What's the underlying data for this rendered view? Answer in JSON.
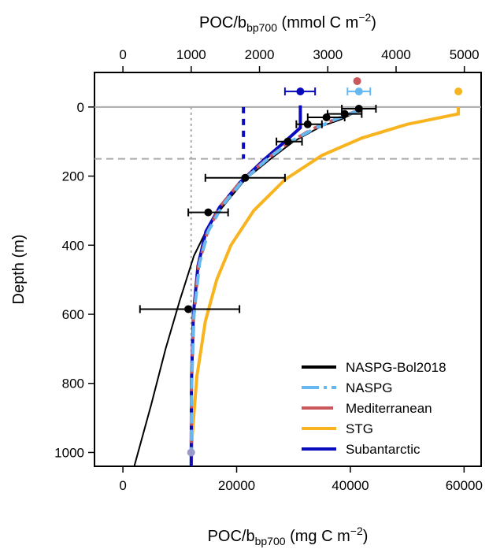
{
  "chart_data": {
    "type": "line",
    "axes": {
      "y": {
        "label": "Depth (m)",
        "range": [
          -100,
          1040
        ],
        "reversed": true,
        "ticks": [
          0,
          200,
          400,
          600,
          800,
          1000
        ],
        "tick_labels": [
          "0",
          "200",
          "400",
          "600",
          "800",
          "1000"
        ]
      },
      "x_bottom": {
        "label_main": "POC/b",
        "label_sub": "bp700",
        "label_units_pre": " (mg C m",
        "label_units_sup": "−2",
        "label_units_post": ")",
        "range": [
          -5000,
          63000
        ],
        "ticks": [
          0,
          20000,
          40000,
          60000
        ],
        "tick_labels": [
          "0",
          "20000",
          "40000",
          "60000"
        ]
      },
      "x_top": {
        "label_main": "POC/b",
        "label_sub": "bp700",
        "label_units_pre": " (mmol C m",
        "label_units_sup": "−2",
        "label_units_post": ")",
        "range": [
          -416.3,
          5245.6
        ],
        "ticks": [
          0,
          1000,
          2000,
          3000,
          4000,
          5000
        ],
        "tick_labels": [
          "0",
          "1000",
          "2000",
          "3000",
          "4000",
          "5000"
        ]
      }
    },
    "reference_lines": {
      "surface_depth": 0,
      "mld_depth": 150,
      "vertical_x": 12000
    },
    "series": [
      {
        "name": "NASPG-Bol2018",
        "color": "#000000",
        "style": "solid",
        "curve": [
          [
            41500,
            10
          ],
          [
            38500,
            35
          ],
          [
            35000,
            55
          ],
          [
            30000,
            100
          ],
          [
            26000,
            150
          ],
          [
            21500,
            210
          ],
          [
            18000,
            280
          ],
          [
            15500,
            330
          ],
          [
            12500,
            430
          ],
          [
            10000,
            560
          ],
          [
            7500,
            700
          ],
          [
            5000,
            860
          ],
          [
            2000,
            1040
          ]
        ],
        "points": [
          {
            "x": 41500,
            "y": 5,
            "xerr": [
              38500,
              44500
            ]
          },
          {
            "x": 39000,
            "y": 20,
            "xerr": [
              36000,
              42000
            ]
          },
          {
            "x": 35800,
            "y": 30,
            "xerr": [
              32500,
              39000
            ]
          },
          {
            "x": 32500,
            "y": 50,
            "xerr": [
              30500,
              35000
            ]
          },
          {
            "x": 29000,
            "y": 100,
            "xerr": [
              27000,
              31500
            ]
          },
          {
            "x": 21500,
            "y": 205,
            "xerr": [
              14500,
              28500
            ]
          },
          {
            "x": 15000,
            "y": 305,
            "xerr": [
              11500,
              18500
            ]
          },
          {
            "x": 11500,
            "y": 585,
            "xerr": [
              3000,
              20500
            ]
          }
        ]
      },
      {
        "name": "NASPG",
        "color": "#66B8F2",
        "style": "dashed",
        "curve": [
          [
            41500,
            10
          ],
          [
            37500,
            35
          ],
          [
            34000,
            60
          ],
          [
            29500,
            100
          ],
          [
            25500,
            150
          ],
          [
            21000,
            215
          ],
          [
            17500,
            285
          ],
          [
            15000,
            360
          ],
          [
            13500,
            450
          ],
          [
            12500,
            600
          ],
          [
            12100,
            800
          ],
          [
            12000,
            1000
          ]
        ],
        "surface_point": {
          "x": 41500,
          "y": -45,
          "xerr": [
            39500,
            43500
          ]
        }
      },
      {
        "name": "Mediterranean",
        "color": "#C9575B",
        "style": "dashed",
        "curve": [
          [
            41000,
            12
          ],
          [
            37000,
            38
          ],
          [
            33500,
            62
          ],
          [
            29000,
            105
          ],
          [
            25000,
            155
          ],
          [
            20500,
            220
          ],
          [
            17000,
            290
          ],
          [
            14800,
            365
          ],
          [
            13300,
            460
          ],
          [
            12400,
            620
          ],
          [
            12050,
            820
          ],
          [
            12000,
            1000
          ]
        ],
        "surface_point": {
          "x": 41200,
          "y": -75
        }
      },
      {
        "name": "STG",
        "color": "#F8B41E",
        "style": "solid",
        "curve": [
          [
            59000,
            0
          ],
          [
            59000,
            20
          ],
          [
            50000,
            50
          ],
          [
            42000,
            90
          ],
          [
            35000,
            140
          ],
          [
            28500,
            210
          ],
          [
            23000,
            300
          ],
          [
            19000,
            400
          ],
          [
            16500,
            500
          ],
          [
            14500,
            620
          ],
          [
            13000,
            780
          ],
          [
            12200,
            950
          ],
          [
            12000,
            1040
          ]
        ],
        "surface_point": {
          "x": 59000,
          "y": -45
        }
      },
      {
        "name": "Subantarctic",
        "color": "#0A0ABF",
        "style": "solid",
        "curve": [
          [
            31200,
            -5
          ],
          [
            31200,
            60
          ],
          [
            28500,
            100
          ],
          [
            25000,
            150
          ],
          [
            20500,
            220
          ],
          [
            17000,
            290
          ],
          [
            14600,
            360
          ],
          [
            13200,
            460
          ],
          [
            12400,
            600
          ],
          [
            12050,
            800
          ],
          [
            12000,
            1040
          ]
        ],
        "mld_line": {
          "x": 21200,
          "y": [
            0,
            150
          ]
        },
        "surface_point": {
          "x": 31200,
          "y": -45,
          "xerr": [
            28500,
            33800
          ]
        }
      }
    ],
    "extra_points": [
      {
        "x": 12000,
        "y": 1000,
        "color": "#9A9AC9"
      }
    ],
    "legend": {
      "position": "bottom-right",
      "entries": [
        "NASPG-Bol2018",
        "NASPG",
        "Mediterranean",
        "STG",
        "Subantarctic"
      ]
    },
    "grid": false
  }
}
